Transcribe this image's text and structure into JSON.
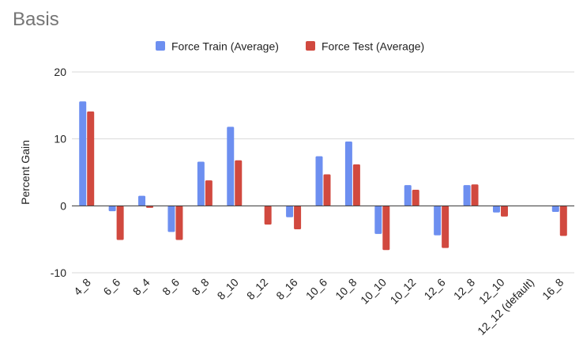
{
  "chart_data": {
    "type": "bar",
    "title": "Basis",
    "ylabel": "Percent Gain",
    "xlabel": "",
    "ylim": [
      -10,
      20
    ],
    "yticks": [
      -10,
      0,
      10,
      20
    ],
    "grid": true,
    "legend_position": "top",
    "categories": [
      "4_8",
      "6_6",
      "8_4",
      "8_6",
      "8_8",
      "8_10",
      "8_12",
      "8_16",
      "10_6",
      "10_8",
      "10_10",
      "10_12",
      "12_6",
      "12_8",
      "12_10",
      "12_12 (default)",
      "16_8"
    ],
    "series": [
      {
        "name": "Force Train (Average)",
        "color": "#6d8ff0",
        "values": [
          15.6,
          -0.8,
          1.5,
          -3.9,
          6.6,
          11.8,
          0,
          -1.7,
          7.4,
          9.6,
          -4.2,
          3.1,
          -4.4,
          3.1,
          -1.0,
          0,
          -0.9
        ]
      },
      {
        "name": "Force Test (Average)",
        "color": "#d1493f",
        "values": [
          14.1,
          -5.1,
          -0.3,
          -5.1,
          3.8,
          6.8,
          -2.8,
          -3.5,
          4.7,
          6.2,
          -6.6,
          2.4,
          -6.3,
          3.2,
          -1.6,
          0,
          -4.5
        ]
      }
    ]
  }
}
